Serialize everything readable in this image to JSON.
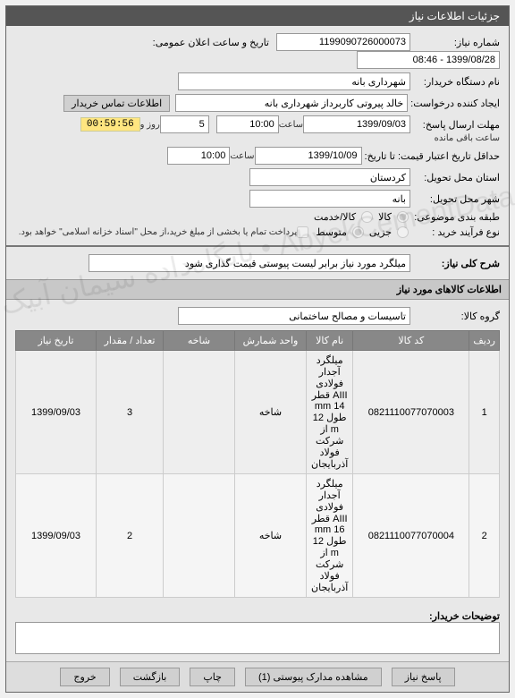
{
  "titlebar": "جزئیات اطلاعات نیاز",
  "labels": {
    "need_no": "شماره نیاز:",
    "announce": "تاریخ و ساعت اعلان عمومی:",
    "buyer": "نام دستگاه خریدار:",
    "creator": "ایجاد کننده درخواست:",
    "deadline": "مهلت ارسال پاسخ:",
    "hour": "ساعت",
    "and": "و",
    "days": "روز و",
    "remain": "ساعت باقی مانده",
    "valid_until": "حداقل تاریخ اعتبار قیمت: تا تاریخ:",
    "province": "استان محل تحویل:",
    "city": "شهر محل تحویل:",
    "budget_cls": "طبقه بندی موضوعی:",
    "goods": "کالا",
    "service": "کالا/خدمت",
    "proc_type": "نوع فرآیند خرید :",
    "low": "جزیی",
    "med": "متوسط",
    "pay_note": "پرداخت تمام یا بخشی از مبلغ خرید،از محل \"اسناد خزانه اسلامی\" خواهد بود.",
    "summary": "شرح کلی نیاز:",
    "goods_info": "اطلاعات کالاهای مورد نیاز",
    "goods_group": "گروه کالا:",
    "buyer_notes": "توضیحات خریدار:",
    "reply": "پاسخ نیاز",
    "attachments": "مشاهده مدارک پیوستی (1)",
    "print": "چاپ",
    "back": "بازگشت",
    "exit": "خروج",
    "contact": "اطلاعات تماس خریدار"
  },
  "values": {
    "need_no": "1199090726000073",
    "announce": "1399/08/28 - 08:46",
    "buyer": "شهرداری بانه",
    "creator": "خالد پیروتی کاربرداز شهرداری بانه",
    "deadline_date": "1399/09/03",
    "deadline_hour": "10:00",
    "days_left": "5",
    "timer": "00:59:56",
    "valid_date": "1399/10/09",
    "valid_hour": "10:00",
    "province": "کردستان",
    "city": "بانه",
    "summary": "میلگرد مورد نیاز برابر لیست پیوستی قیمت گذاری شود",
    "goods_group": "تاسیسات و مصالح ساختمانی"
  },
  "table": {
    "headers": [
      "ردیف",
      "کد کالا",
      "نام کالا",
      "واحد شمارش",
      "شاخه",
      "تعداد / مقدار",
      "تاریخ نیاز"
    ],
    "rows": [
      {
        "n": "1",
        "code": "0821110077070003",
        "name": "میلگرد آجدار فولادی AIII قطر 14 mm طول 12 m از شرکت فولاد آذربایجان",
        "unit": "شاخه",
        "branch": "",
        "qty": "3",
        "date": "1399/09/03"
      },
      {
        "n": "2",
        "code": "0821110077070004",
        "name": "میلگرد آجدار فولادی AIII قطر 16 mm طول 12 m از شرکت فولاد آذربایجان",
        "unit": "شاخه",
        "branch": "",
        "qty": "2",
        "date": "1399/09/03"
      }
    ]
  },
  "watermark": "AbyekCementData • پایگاه‌داده سیمان آبیک"
}
